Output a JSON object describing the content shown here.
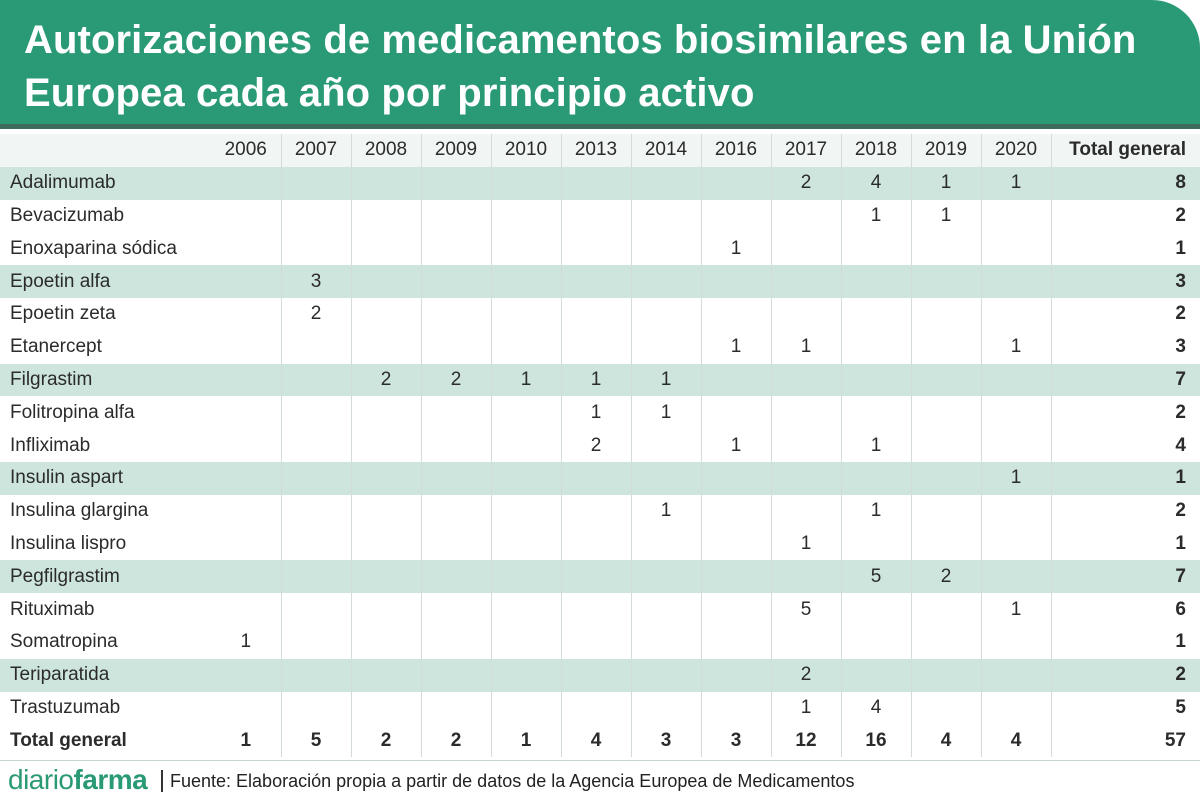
{
  "title": "Autorizaciones de medicamentos biosimilares en la Unión Europea cada año por principio activo",
  "colors": {
    "header": "#2a9a76",
    "header_border": "#3d6b5c",
    "row_shade": "#cde5dc",
    "header_row": "#f1f6f4"
  },
  "chart_data": {
    "type": "table",
    "columns": [
      "2006",
      "2007",
      "2008",
      "2009",
      "2010",
      "2013",
      "2014",
      "2016",
      "2017",
      "2018",
      "2019",
      "2020",
      "Total general"
    ],
    "rows": [
      {
        "name": "Adalimumab",
        "cells": [
          "",
          "",
          "",
          "",
          "",
          "",
          "",
          "",
          "2",
          "4",
          "1",
          "1",
          "8"
        ]
      },
      {
        "name": "Bevacizumab",
        "cells": [
          "",
          "",
          "",
          "",
          "",
          "",
          "",
          "",
          "",
          "1",
          "1",
          "",
          "2"
        ]
      },
      {
        "name": "Enoxaparina sódica",
        "cells": [
          "",
          "",
          "",
          "",
          "",
          "",
          "",
          "1",
          "",
          "",
          "",
          "",
          "1"
        ]
      },
      {
        "name": "Epoetin alfa",
        "cells": [
          "",
          "3",
          "",
          "",
          "",
          "",
          "",
          "",
          "",
          "",
          "",
          "",
          "3"
        ]
      },
      {
        "name": "Epoetin zeta",
        "cells": [
          "",
          "2",
          "",
          "",
          "",
          "",
          "",
          "",
          "",
          "",
          "",
          "",
          "2"
        ]
      },
      {
        "name": "Etanercept",
        "cells": [
          "",
          "",
          "",
          "",
          "",
          "",
          "",
          "1",
          "1",
          "",
          "",
          "1",
          "3"
        ]
      },
      {
        "name": "Filgrastim",
        "cells": [
          "",
          "",
          "2",
          "2",
          "1",
          "1",
          "1",
          "",
          "",
          "",
          "",
          "",
          "7"
        ]
      },
      {
        "name": "Folitropina alfa",
        "cells": [
          "",
          "",
          "",
          "",
          "",
          "1",
          "1",
          "",
          "",
          "",
          "",
          "",
          "2"
        ]
      },
      {
        "name": "Infliximab",
        "cells": [
          "",
          "",
          "",
          "",
          "",
          "2",
          "",
          "1",
          "",
          "1",
          "",
          "",
          "4"
        ]
      },
      {
        "name": "Insulin aspart",
        "cells": [
          "",
          "",
          "",
          "",
          "",
          "",
          "",
          "",
          "",
          "",
          "",
          "1",
          "1"
        ]
      },
      {
        "name": "Insulina glargina",
        "cells": [
          "",
          "",
          "",
          "",
          "",
          "",
          "1",
          "",
          "",
          "1",
          "",
          "",
          "2"
        ]
      },
      {
        "name": "Insulina lispro",
        "cells": [
          "",
          "",
          "",
          "",
          "",
          "",
          "",
          "",
          "1",
          "",
          "",
          "",
          "1"
        ]
      },
      {
        "name": "Pegfilgrastim",
        "cells": [
          "",
          "",
          "",
          "",
          "",
          "",
          "",
          "",
          "",
          "5",
          "2",
          "",
          "7"
        ]
      },
      {
        "name": "Rituximab",
        "cells": [
          "",
          "",
          "",
          "",
          "",
          "",
          "",
          "",
          "5",
          "",
          "",
          "1",
          "6"
        ]
      },
      {
        "name": "Somatropina",
        "cells": [
          "1",
          "",
          "",
          "",
          "",
          "",
          "",
          "",
          "",
          "",
          "",
          "",
          "1"
        ]
      },
      {
        "name": "Teriparatida",
        "cells": [
          "",
          "",
          "",
          "",
          "",
          "",
          "",
          "",
          "2",
          "",
          "",
          "",
          "2"
        ]
      },
      {
        "name": "Trastuzumab",
        "cells": [
          "",
          "",
          "",
          "",
          "",
          "",
          "",
          "",
          "1",
          "4",
          "",
          "",
          "5"
        ]
      }
    ],
    "total_row": {
      "name": "Total general",
      "cells": [
        "1",
        "5",
        "2",
        "2",
        "1",
        "4",
        "3",
        "3",
        "12",
        "16",
        "4",
        "4",
        "57"
      ]
    },
    "shaded_rows": [
      0,
      3,
      6,
      9,
      12,
      15
    ]
  },
  "footer": {
    "logo_part1": "diario",
    "logo_part2": "farma",
    "source": "Fuente: Elaboración propia a partir de datos de la Agencia Europea de Medicamentos"
  }
}
